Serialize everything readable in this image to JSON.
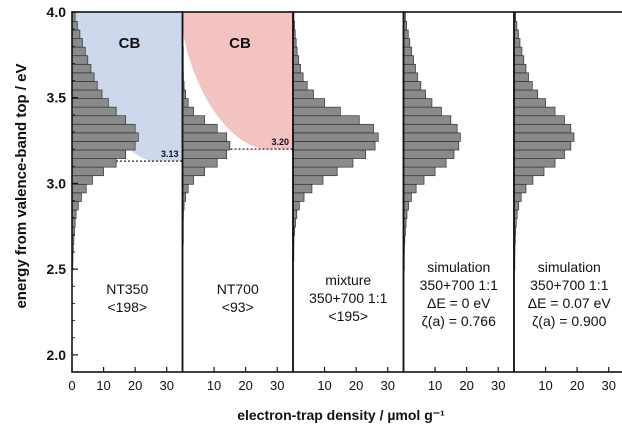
{
  "chart_data": {
    "type": "bar",
    "orientation": "horizontal",
    "ylabel": "energy from valence-band top / eV",
    "xlabel": "electron-trap density / µmol g⁻¹",
    "ylim": [
      1.9,
      4.0
    ],
    "yticks": [
      "2.0",
      "2.5",
      "3.0",
      "3.5",
      "4.0"
    ],
    "xlim": [
      0,
      35
    ],
    "bin_centers": [
      2.47,
      2.52,
      2.57,
      2.62,
      2.67,
      2.72,
      2.77,
      2.82,
      2.87,
      2.92,
      2.97,
      3.02,
      3.07,
      3.12,
      3.17,
      3.22,
      3.27,
      3.32,
      3.37,
      3.42,
      3.47,
      3.52,
      3.57,
      3.62,
      3.67,
      3.72,
      3.77,
      3.82,
      3.87,
      3.92,
      3.97
    ],
    "panels": [
      {
        "name": "NT350",
        "xticks": [
          "0",
          "10",
          "20",
          "30"
        ],
        "annotation": [
          "NT350",
          "<198>"
        ],
        "values": [
          0,
          0.2,
          0.3,
          0.4,
          0.6,
          0.8,
          1,
          1.3,
          2,
          3,
          4.5,
          6.5,
          10,
          14,
          17,
          20,
          21,
          20,
          17,
          14,
          11.5,
          9.5,
          8,
          7,
          6,
          5,
          4.2,
          3.3,
          2.5,
          1.7,
          1
        ],
        "region": {
          "label": "CB",
          "from_ev": 3.13,
          "color": "#cdd8ec",
          "edge_value": "3.13"
        }
      },
      {
        "name": "NT700",
        "xticks": [
          "10",
          "20",
          "30"
        ],
        "annotation": [
          "NT700",
          "<93>"
        ],
        "values": [
          0,
          0,
          0,
          0,
          0.1,
          0.1,
          0.2,
          0.3,
          0.5,
          1,
          1.8,
          3.5,
          7,
          11,
          14,
          15,
          14,
          11,
          7,
          3.5,
          1.8,
          1,
          0.5,
          0.3,
          0.2,
          0.1,
          0.1,
          0,
          0,
          0,
          0
        ],
        "region": {
          "label": "CB",
          "from_ev": 3.2,
          "color": "#f2c3c1",
          "edge_value": "3.20"
        }
      },
      {
        "name": "mixture",
        "xticks": [
          "10",
          "20",
          "30"
        ],
        "annotation": [
          "mixture",
          "350+700 1:1",
          "<195>"
        ],
        "values": [
          0,
          0,
          0.1,
          0.2,
          0.3,
          0.5,
          0.8,
          1.2,
          2,
          3.5,
          6,
          9.5,
          14,
          19,
          23,
          26,
          27,
          25.5,
          21,
          15,
          10,
          6.5,
          4.5,
          3.2,
          2.4,
          1.8,
          1.3,
          1,
          0.7,
          0.5,
          0.3
        ],
        "region": null
      },
      {
        "name": "simulation dE=0",
        "xticks": [
          "10",
          "20",
          "30"
        ],
        "annotation": [
          "simulation",
          "350+700 1:1",
          "ΔE = 0 eV",
          "ζ(a) = 0.766"
        ],
        "values": [
          0,
          0.1,
          0.2,
          0.3,
          0.4,
          0.6,
          0.8,
          1.1,
          1.6,
          2.5,
          4,
          6.5,
          10,
          13.5,
          16,
          17.5,
          18,
          17,
          15,
          12,
          9,
          7,
          5.5,
          4.5,
          3.8,
          3.2,
          2.6,
          2,
          1.5,
          1,
          0.6
        ],
        "region": null
      },
      {
        "name": "simulation dE=0.07",
        "xticks": [
          "10",
          "20",
          "30"
        ],
        "annotation": [
          "simulation",
          "350+700 1:1",
          "ΔE = 0.07 eV",
          "ζ(a) = 0.900"
        ],
        "values": [
          0,
          0.1,
          0.2,
          0.3,
          0.4,
          0.5,
          0.7,
          1,
          1.5,
          2.3,
          3.8,
          6,
          9.5,
          13,
          16,
          18,
          19,
          18,
          16,
          13,
          10,
          7.5,
          5.8,
          4.6,
          3.8,
          3.1,
          2.5,
          1.9,
          1.4,
          0.9,
          0.5
        ],
        "region": null
      }
    ]
  }
}
